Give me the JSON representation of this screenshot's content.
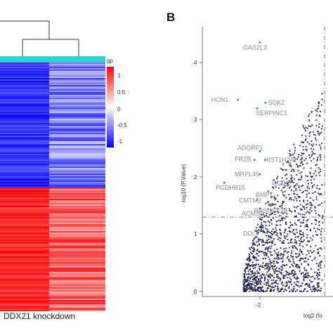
{
  "panel_a": {
    "group_label": "gp",
    "xlabel": "DDX21 knockdown",
    "colorbar_ticks": [
      "1",
      "0.5",
      "0",
      "-0.5",
      "-1"
    ],
    "colors": {
      "high": "#ff0000",
      "mid": "#ffffff",
      "low": "#0000ff",
      "group": "#2fd3d0"
    }
  },
  "panel_b": {
    "letter": "B",
    "ylabel": "-log10 (P.Value)",
    "xlabel": "log2 (fo",
    "yticks": [
      "0",
      "1",
      "2",
      "3",
      "4"
    ],
    "xticks": [
      "-2"
    ],
    "colors": {
      "sig": "#2a2a8a",
      "nonsig": "#222222",
      "label": "#8a8a8a",
      "highlight": "#2e8b57"
    }
  },
  "chart_data": [
    {
      "type": "heatmap",
      "title": "",
      "xlabel": "DDX21 knockdown",
      "color_range": [
        -1,
        1
      ],
      "legend_title": "gp",
      "note": "Two visible columns; upper block of rows blue in left column / lighter in right column, lower block red."
    },
    {
      "type": "scatter",
      "title": "",
      "xlabel": "log2 (fo",
      "ylabel": "-log10 (P.Value)",
      "ylim": [
        0,
        4.5
      ],
      "threshold_y": 1.3,
      "labeled_points": [
        {
          "label": "GAS2L2",
          "x": -2.0,
          "y": 4.35
        },
        {
          "label": "HCN1",
          "x": -2.4,
          "y": 3.35
        },
        {
          "label": "SDK2",
          "x": -1.9,
          "y": 3.3
        },
        {
          "label": "SERPINC1",
          "x": -2.05,
          "y": 3.2
        },
        {
          "label": "ADGRF1",
          "x": -2.0,
          "y": 2.45
        },
        {
          "label": "FRZB",
          "x": -2.1,
          "y": 2.3
        },
        {
          "label": "HIST1H2AI",
          "x": -1.9,
          "y": 2.3
        },
        {
          "label": "MRPL45",
          "x": -2.0,
          "y": 2.05
        },
        {
          "label": "CCDC",
          "x": -1.75,
          "y": 1.95
        },
        {
          "label": "PCDHB15",
          "x": -2.65,
          "y": 1.9
        },
        {
          "label": "BMP7",
          "x": -1.85,
          "y": 1.75
        },
        {
          "label": "CMTM2",
          "x": -2.05,
          "y": 1.6
        },
        {
          "label": "RASGEF1B",
          "x": -1.8,
          "y": 1.5
        },
        {
          "label": "ACMSD",
          "x": -2.0,
          "y": 1.45
        },
        {
          "label": "DDO",
          "x": -2.05,
          "y": 1.05
        }
      ]
    }
  ]
}
